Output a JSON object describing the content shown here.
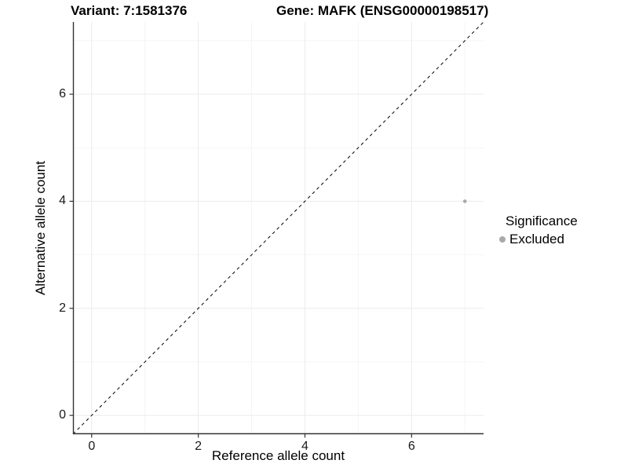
{
  "header": {
    "variant_title": "Variant: 7:1581376",
    "gene_title": "Gene: MAFK (ENSG00000198517)"
  },
  "chart_data": {
    "type": "scatter",
    "title": "Variant: 7:1581376   Gene: MAFK (ENSG00000198517)",
    "xlabel": "Reference allele count",
    "ylabel": "Alternative allele count",
    "xlim": [
      -0.35,
      7.35
    ],
    "ylim": [
      -0.35,
      7.35
    ],
    "x_ticks": [
      0,
      2,
      4,
      6
    ],
    "y_ticks": [
      0,
      2,
      4,
      6
    ],
    "major_gridlines": [
      0,
      2,
      4,
      6
    ],
    "minor_gridlines": [
      1,
      3,
      5,
      7
    ],
    "grid": true,
    "series": [
      {
        "name": "Excluded",
        "points": [
          {
            "x": 7,
            "y": 4
          }
        ],
        "color": "#a9a9a9",
        "point_radius": 2.3
      }
    ],
    "reference_line": {
      "type": "identity",
      "style": "dashed",
      "color": "#000000",
      "from": -0.35,
      "to": 7.35
    },
    "legend_position": "right"
  },
  "legend": {
    "title": "Significance",
    "items": [
      {
        "label": "Excluded",
        "color": "#a9a9a9"
      }
    ]
  },
  "colors": {
    "background": "#ffffff",
    "axis_line": "#333333",
    "tick_mark": "#333333",
    "grid_major": "#ebebeb",
    "grid_minor": "#f5f5f5",
    "point": "#a9a9a9",
    "text": "#000000"
  }
}
